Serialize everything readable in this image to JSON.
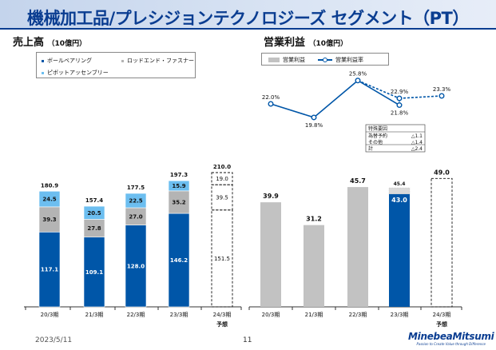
{
  "title": "機械加工品/プレシジョンテクノロジーズ セグメント（PT）",
  "left": {
    "heading": "売上高",
    "unit": "（10億円）",
    "legend": [
      {
        "label": "ボールベアリング",
        "color": "#0056a8"
      },
      {
        "label": "ロッドエンド・ファスナー",
        "color": "#b4b4b4"
      },
      {
        "label": "ピボットアッセンブリー",
        "color": "#6cbef0"
      }
    ]
  },
  "right": {
    "heading": "営業利益",
    "unit": "（10億円）",
    "legend": [
      {
        "label": "営業利益",
        "color": "#c2c2c2"
      },
      {
        "label": "営業利益率",
        "color": "#0056a8"
      }
    ]
  },
  "chart_data": [
    {
      "type": "bar",
      "stacked": true,
      "title": "売上高（10億円）",
      "categories": [
        "20/3期",
        "21/3期",
        "22/3期",
        "23/3期",
        "24/3期"
      ],
      "forecast_note": "予想",
      "series": [
        {
          "name": "ボールベアリング",
          "values": [
            117.1,
            109.1,
            128.0,
            146.2,
            151.5
          ],
          "labels": [
            "117.1",
            "109.1",
            "128.0",
            "146.2",
            "151.5"
          ]
        },
        {
          "name": "ロッドエンド・ファスナー",
          "values": [
            39.3,
            27.8,
            27.0,
            35.2,
            39.5
          ],
          "labels": [
            "39.3",
            "27.8",
            "27.0",
            "35.2",
            "39.5"
          ]
        },
        {
          "name": "ピボットアッセンブリー",
          "values": [
            24.5,
            20.5,
            22.5,
            15.9,
            19.0
          ],
          "labels": [
            "24.5",
            "20.5",
            "22.5",
            "15.9",
            "19.0"
          ]
        }
      ],
      "totals": [
        180.9,
        157.4,
        177.5,
        197.3,
        210.0
      ],
      "total_labels": [
        "180.9",
        "157.4",
        "177.5",
        "197.3",
        "210.0"
      ]
    },
    {
      "type": "bar",
      "title": "営業利益（10億円）",
      "categories": [
        "20/3期",
        "21/3期",
        "22/3期",
        "23/3期",
        "24/3期"
      ],
      "forecast_note": "予想",
      "series": [
        {
          "name": "営業利益",
          "values": [
            39.9,
            31.2,
            45.7,
            43.0,
            49.0
          ],
          "labels": [
            "39.9",
            "31.2",
            "45.7",
            "43.0",
            "49.0"
          ]
        },
        {
          "name": "営業利益率",
          "type": "line",
          "values": [
            22.0,
            19.8,
            25.8,
            21.8,
            23.3
          ],
          "labels": [
            "22.0%",
            "19.8%",
            "25.8%",
            "21.8%",
            "23.3%"
          ]
        }
      ],
      "adjusted": {
        "value": 45.4,
        "label": "45.4",
        "margin": 22.9,
        "margin_label": "22.9%"
      },
      "special_factors": {
        "title": "特殊要因",
        "rows": [
          {
            "label": "為替予約",
            "value": "△1.1"
          },
          {
            "label": "その他",
            "value": "△1.4"
          },
          {
            "label": "計",
            "value": "△2.4"
          }
        ]
      }
    }
  ],
  "footer": {
    "date": "2023/5/11",
    "page": "11",
    "brand": "MinebeaMitsumi",
    "tagline": "Passion to Create Value through Difference"
  }
}
